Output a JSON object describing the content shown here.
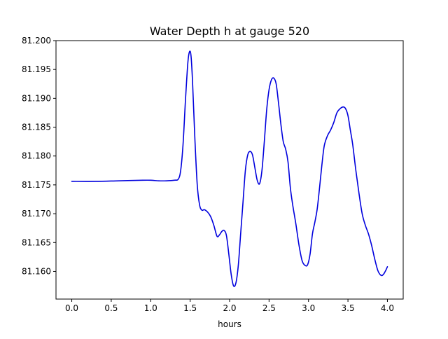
{
  "chart_data": {
    "type": "line",
    "title": "Water Depth h at gauge 520",
    "xlabel": "hours",
    "ylabel": "",
    "xlim": [
      -0.2,
      4.2
    ],
    "ylim": [
      81.1552,
      81.2
    ],
    "xticks": [
      0.0,
      0.5,
      1.0,
      1.5,
      2.0,
      2.5,
      3.0,
      3.5,
      4.0
    ],
    "xtick_labels": [
      "0.0",
      "0.5",
      "1.0",
      "1.5",
      "2.0",
      "2.5",
      "3.0",
      "3.5",
      "4.0"
    ],
    "yticks": [
      81.16,
      81.165,
      81.17,
      81.175,
      81.18,
      81.185,
      81.19,
      81.195,
      81.2
    ],
    "ytick_labels": [
      "81.160",
      "81.165",
      "81.170",
      "81.175",
      "81.180",
      "81.185",
      "81.190",
      "81.195",
      "81.200"
    ],
    "grid": false,
    "series": [
      {
        "color": "#0000dd",
        "x": [
          0.0,
          0.3,
          0.6,
          0.9,
          1.0,
          1.1,
          1.2,
          1.3,
          1.35,
          1.38,
          1.41,
          1.44,
          1.47,
          1.49,
          1.51,
          1.53,
          1.56,
          1.59,
          1.62,
          1.65,
          1.68,
          1.72,
          1.76,
          1.8,
          1.84,
          1.87,
          1.9,
          1.93,
          1.96,
          1.99,
          2.02,
          2.05,
          2.08,
          2.11,
          2.14,
          2.17,
          2.2,
          2.23,
          2.26,
          2.29,
          2.32,
          2.35,
          2.38,
          2.41,
          2.44,
          2.47,
          2.5,
          2.53,
          2.56,
          2.59,
          2.62,
          2.65,
          2.68,
          2.71,
          2.74,
          2.77,
          2.8,
          2.84,
          2.88,
          2.92,
          2.96,
          2.99,
          3.02,
          3.05,
          3.08,
          3.11,
          3.14,
          3.17,
          3.2,
          3.24,
          3.28,
          3.32,
          3.36,
          3.4,
          3.44,
          3.47,
          3.5,
          3.53,
          3.56,
          3.6,
          3.64,
          3.68,
          3.72,
          3.76,
          3.8,
          3.84,
          3.88,
          3.92,
          3.95,
          3.98,
          4.0
        ],
        "y": [
          81.1756,
          81.1756,
          81.1757,
          81.1758,
          81.1758,
          81.1757,
          81.1757,
          81.1758,
          81.176,
          81.1775,
          81.182,
          81.1895,
          81.196,
          81.198,
          81.1975,
          81.193,
          81.183,
          81.175,
          81.1715,
          81.1706,
          81.1707,
          81.1703,
          81.1695,
          81.168,
          81.1661,
          81.1663,
          81.1669,
          81.1671,
          81.1662,
          81.163,
          81.1595,
          81.1575,
          81.158,
          81.161,
          81.1665,
          81.172,
          81.1775,
          81.1802,
          81.1808,
          81.1802,
          81.178,
          81.1758,
          81.1752,
          81.1775,
          81.1825,
          81.188,
          81.1915,
          81.1932,
          81.1935,
          81.1925,
          81.1892,
          81.1855,
          81.1825,
          81.1812,
          81.179,
          81.1745,
          81.1715,
          81.1682,
          81.1645,
          81.1618,
          81.161,
          81.1612,
          81.163,
          81.1665,
          81.1685,
          81.1708,
          81.1745,
          81.1785,
          81.1818,
          81.1835,
          81.1845,
          81.1858,
          81.1875,
          81.1882,
          81.1885,
          81.1882,
          81.187,
          81.1845,
          81.182,
          81.1775,
          81.1735,
          81.17,
          81.168,
          81.1665,
          81.1645,
          81.1621,
          81.1601,
          81.1593,
          81.1595,
          81.1602,
          81.1608
        ]
      }
    ]
  }
}
